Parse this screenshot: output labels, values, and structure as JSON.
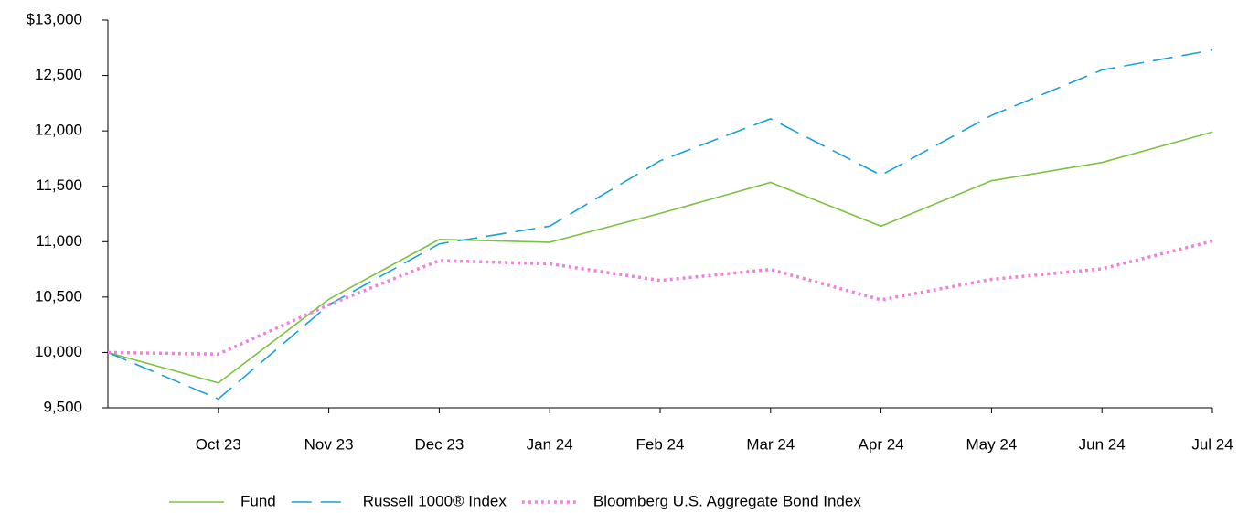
{
  "chart_data": {
    "type": "line",
    "categories": [
      null,
      "Oct 23",
      "Nov 23",
      "Dec 23",
      "Jan 24",
      "Feb 24",
      "Mar 24",
      "Apr 24",
      "May 24",
      "Jun 24",
      "Jul 24"
    ],
    "series": [
      {
        "name": "Fund",
        "color": "#7dc242",
        "dash": "solid",
        "values": [
          10000,
          9725,
          10480,
          11020,
          10995,
          11255,
          11535,
          11140,
          11550,
          11715,
          11990
        ]
      },
      {
        "name": "Russell 1000® Index",
        "color": "#1ba1d5",
        "dash": "dashed",
        "values": [
          10000,
          9580,
          10430,
          10980,
          11140,
          11730,
          12110,
          11600,
          12140,
          12550,
          12730
        ]
      },
      {
        "name": "Bloomberg U.S. Aggregate Bond Index",
        "color": "#ee82dd",
        "dash": "dotted",
        "values": [
          10000,
          9985,
          10430,
          10830,
          10800,
          10650,
          10750,
          10475,
          10660,
          10755,
          11005
        ]
      }
    ],
    "ylim": [
      9500,
      13000
    ],
    "yticks": [
      {
        "value": 9500,
        "label": "9,500"
      },
      {
        "value": 10000,
        "label": "10,000"
      },
      {
        "value": 10500,
        "label": "10,500"
      },
      {
        "value": 11000,
        "label": "11,000"
      },
      {
        "value": 11500,
        "label": "11,500"
      },
      {
        "value": 12000,
        "label": "12,000"
      },
      {
        "value": 12500,
        "label": "12,500"
      },
      {
        "value": 13000,
        "label": "$13,000"
      }
    ],
    "legend": "bottom"
  }
}
